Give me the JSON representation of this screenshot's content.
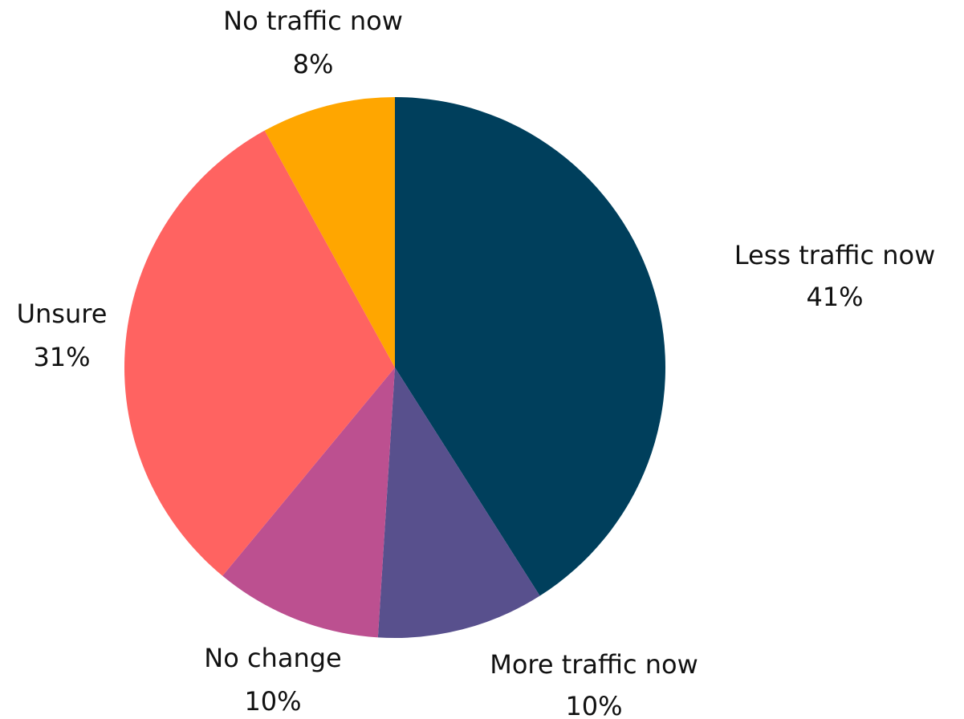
{
  "chart_data": {
    "type": "pie",
    "categories": [
      "Less traffic now",
      "More traffic now",
      "No change",
      "Unsure",
      "No traffic now"
    ],
    "values": [
      41,
      10,
      10,
      31,
      8
    ],
    "value_labels": [
      "41%",
      "10%",
      "10%",
      "31%",
      "8%"
    ],
    "colors": [
      "#003f5c",
      "#58508d",
      "#bc5090",
      "#ff6361",
      "#ffa600"
    ]
  }
}
